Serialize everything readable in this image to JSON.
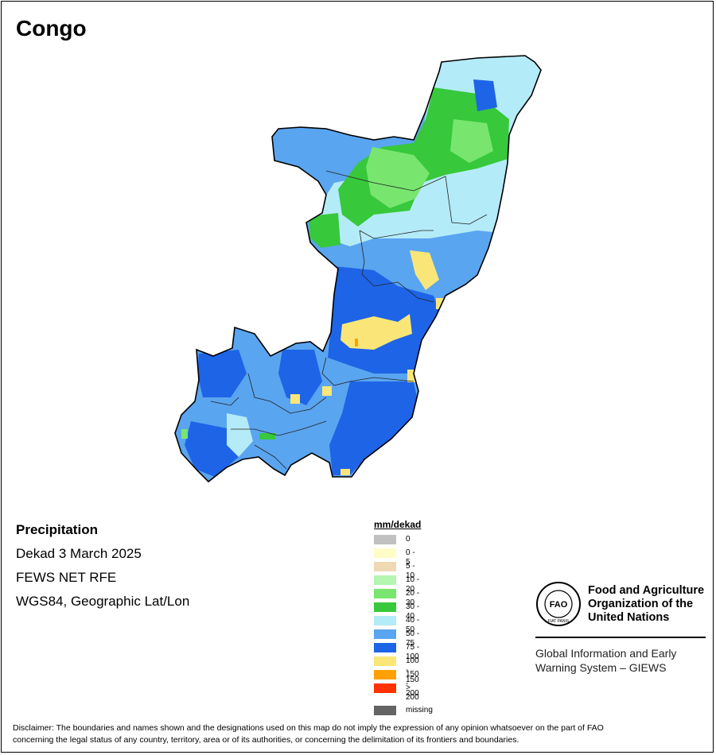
{
  "title": "Congo",
  "info": {
    "variable": "Precipitation",
    "period": "Dekad 3 March 2025",
    "source": "FEWS NET RFE",
    "projection": "WGS84, Geographic Lat/Lon"
  },
  "legend": {
    "title": "mm/dekad",
    "items": [
      {
        "label": "0",
        "color": "#c0c0c0"
      },
      {
        "label": "0 - 5",
        "color": "#fffdc8"
      },
      {
        "label": "5 - 10",
        "color": "#eed9b4"
      },
      {
        "label": "10 - 20",
        "color": "#b4f5b0"
      },
      {
        "label": "20 - 30",
        "color": "#78e66e"
      },
      {
        "label": "30 - 40",
        "color": "#37c83c"
      },
      {
        "label": "40 - 50",
        "color": "#b4ebf8"
      },
      {
        "label": "50 - 75",
        "color": "#5aa5f0"
      },
      {
        "label": "75 - 100",
        "color": "#1e64e6"
      },
      {
        "label": "100 - 150",
        "color": "#fae678"
      },
      {
        "label": "150 - 200",
        "color": "#ffa000"
      },
      {
        "label": "> 200",
        "color": "#ff3200"
      }
    ],
    "missing": {
      "label": "missing",
      "color": "#646464"
    }
  },
  "organization": {
    "name_line1": "Food and Agriculture",
    "name_line2": "Organization of the",
    "name_line3": "United Nations",
    "logo_text": "FAO",
    "logo_motto": "FIAT PANIS",
    "program_line1": "Global Information and Early",
    "program_line2": "Warning System – GIEWS"
  },
  "disclaimer_line1": "Disclaimer: The boundaries and names shown and the designations used on this map do not imply the expression of any opinion whatsoever on the part of FAO",
  "disclaimer_line2": "concerning the legal status of any country, territory, area or of its authorities, or concerning the delimitation of its frontiers and boundaries."
}
